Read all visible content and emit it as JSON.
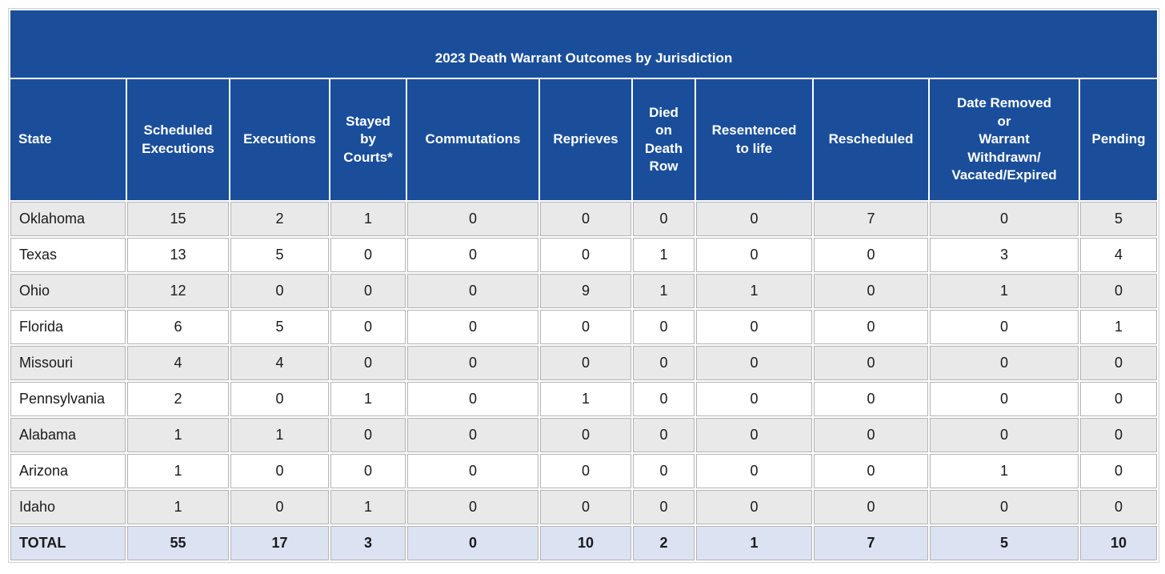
{
  "title": "2023 Death Warrant Outcomes by Jurisdiction",
  "header_labels": [
    "State",
    "Scheduled\nExecutions",
    "Executions",
    "Stayed\nby\nCourts*",
    "Commutations",
    "Reprieves",
    "Died\non\nDeath\nRow",
    "Resentenced\nto life",
    "Rescheduled",
    "Date Removed\nor\nWarrant\nWithdrawn/\nVacated/Expired",
    "Pending"
  ],
  "rows": [
    {
      "state": "Oklahoma",
      "values": [
        "15",
        "2",
        "1",
        "0",
        "0",
        "0",
        "0",
        "7",
        "0",
        "5"
      ]
    },
    {
      "state": "Texas",
      "values": [
        "13",
        "5",
        "0",
        "0",
        "0",
        "1",
        "0",
        "0",
        "3",
        "4"
      ]
    },
    {
      "state": "Ohio",
      "values": [
        "12",
        "0",
        "0",
        "0",
        "9",
        "1",
        "1",
        "0",
        "1",
        "0"
      ]
    },
    {
      "state": "Florida",
      "values": [
        "6",
        "5",
        "0",
        "0",
        "0",
        "0",
        "0",
        "0",
        "0",
        "1"
      ]
    },
    {
      "state": "Missouri",
      "values": [
        "4",
        "4",
        "0",
        "0",
        "0",
        "0",
        "0",
        "0",
        "0",
        "0"
      ]
    },
    {
      "state": "Pennsylvania",
      "values": [
        "2",
        "0",
        "1",
        "0",
        "1",
        "0",
        "0",
        "0",
        "0",
        "0"
      ]
    },
    {
      "state": "Alabama",
      "values": [
        "1",
        "1",
        "0",
        "0",
        "0",
        "0",
        "0",
        "0",
        "0",
        "0"
      ]
    },
    {
      "state": "Arizona",
      "values": [
        "1",
        "0",
        "0",
        "0",
        "0",
        "0",
        "0",
        "0",
        "1",
        "0"
      ]
    },
    {
      "state": "Idaho",
      "values": [
        "1",
        "0",
        "1",
        "0",
        "0",
        "0",
        "0",
        "0",
        "0",
        "0"
      ]
    }
  ],
  "total_row": {
    "state": "TOTAL",
    "values": [
      "55",
      "17",
      "3",
      "0",
      "10",
      "2",
      "1",
      "7",
      "5",
      "10"
    ]
  },
  "colors": {
    "header_background": "#1a4e9b",
    "header_text": "#ffffff",
    "stripe_row_background": "#e9e9e9",
    "total_row_background": "#dbe3f3",
    "cell_border": "#b3b3b3"
  },
  "chart_data": {
    "type": "table",
    "title": "2023 Death Warrant Outcomes by Jurisdiction",
    "columns": [
      "State",
      "Scheduled Executions",
      "Executions",
      "Stayed by Courts*",
      "Commutations",
      "Reprieves",
      "Died on Death Row",
      "Resentenced to life",
      "Rescheduled",
      "Date Removed or Warrant Withdrawn/Vacated/Expired",
      "Pending"
    ],
    "rows": [
      [
        "Oklahoma",
        15,
        2,
        1,
        0,
        0,
        0,
        0,
        7,
        0,
        5
      ],
      [
        "Texas",
        13,
        5,
        0,
        0,
        0,
        1,
        0,
        0,
        3,
        4
      ],
      [
        "Ohio",
        12,
        0,
        0,
        0,
        9,
        1,
        1,
        0,
        1,
        0
      ],
      [
        "Florida",
        6,
        5,
        0,
        0,
        0,
        0,
        0,
        0,
        0,
        1
      ],
      [
        "Missouri",
        4,
        4,
        0,
        0,
        0,
        0,
        0,
        0,
        0,
        0
      ],
      [
        "Pennsylvania",
        2,
        0,
        1,
        0,
        1,
        0,
        0,
        0,
        0,
        0
      ],
      [
        "Alabama",
        1,
        1,
        0,
        0,
        0,
        0,
        0,
        0,
        0,
        0
      ],
      [
        "Arizona",
        1,
        0,
        0,
        0,
        0,
        0,
        0,
        0,
        1,
        0
      ],
      [
        "Idaho",
        1,
        0,
        1,
        0,
        0,
        0,
        0,
        0,
        0,
        0
      ],
      [
        "TOTAL",
        55,
        17,
        3,
        0,
        10,
        2,
        1,
        7,
        5,
        10
      ]
    ]
  }
}
